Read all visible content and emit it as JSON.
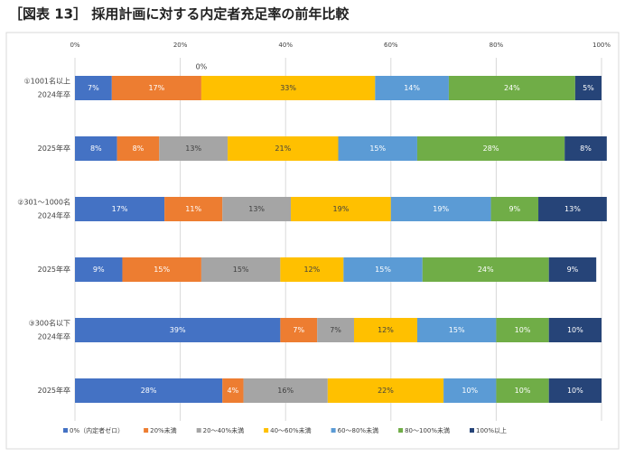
{
  "chart_data": {
    "type": "stacked-bar-horizontal",
    "title": "［図表 13］ 採用計画に対する内定者充足率の前年比較",
    "categories": [
      [
        "①1001名以上",
        "2024年卒"
      ],
      [
        "2025年卒"
      ],
      [
        "②301～1000名",
        "2024年卒"
      ],
      [
        "2025年卒"
      ],
      [
        "③300名以下",
        "2024年卒"
      ],
      [
        "2025年卒"
      ]
    ],
    "series": [
      {
        "name": "0%（内定者ゼロ）",
        "color": "#4472c4",
        "values": [
          7,
          8,
          17,
          9,
          39,
          28
        ],
        "value_labels": [
          "7%",
          "8%",
          "17%",
          "9%",
          "39%",
          "28%"
        ]
      },
      {
        "name": "20%未満",
        "color": "#ed7d31",
        "values": [
          17,
          8,
          11,
          15,
          7,
          4
        ],
        "value_labels": [
          "17%",
          "8%",
          "11%",
          "15%",
          "7%",
          "4%"
        ]
      },
      {
        "name": "20～40%未満",
        "color": "#a5a5a5",
        "values": [
          0,
          13,
          13,
          15,
          7,
          16
        ],
        "value_labels": [
          "0%",
          "13%",
          "13%",
          "15%",
          "7%",
          "16%"
        ]
      },
      {
        "name": "40～60%未満",
        "color": "#ffc000",
        "values": [
          33,
          21,
          19,
          12,
          12,
          22
        ],
        "value_labels": [
          "33%",
          "21%",
          "19%",
          "12%",
          "12%",
          "22%"
        ]
      },
      {
        "name": "60～80%未満",
        "color": "#5b9bd5",
        "values": [
          14,
          15,
          19,
          15,
          15,
          10
        ],
        "value_labels": [
          "14%",
          "15%",
          "19%",
          "15%",
          "15%",
          "10%"
        ]
      },
      {
        "name": "80～100%未満",
        "color": "#70ad47",
        "values": [
          24,
          28,
          9,
          24,
          10,
          10
        ],
        "value_labels": [
          "24%",
          "28%",
          "9%",
          "24%",
          "10%",
          "10%"
        ]
      },
      {
        "name": "100%以上",
        "color": "#264478",
        "values": [
          5,
          8,
          13,
          9,
          10,
          10
        ],
        "value_labels": [
          "5%",
          "8%",
          "13%",
          "9%",
          "10%",
          "10%"
        ]
      }
    ],
    "xlim": [
      0,
      100
    ],
    "xticks": [
      {
        "value": 0,
        "label": "0%"
      },
      {
        "value": 20,
        "label": "20%"
      },
      {
        "value": 40,
        "label": "40%"
      },
      {
        "value": 60,
        "label": "60%"
      },
      {
        "value": 80,
        "label": "80%"
      },
      {
        "value": 100,
        "label": "100%"
      }
    ],
    "grid": true,
    "legend": "bottom"
  }
}
